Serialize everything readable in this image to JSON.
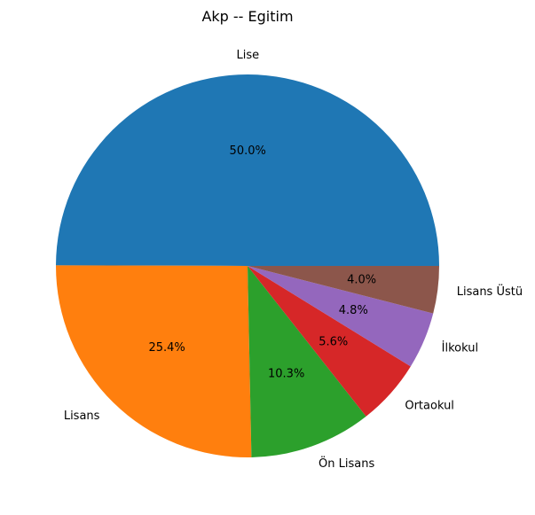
{
  "chart_data": {
    "type": "pie",
    "title": "Akp -- Egitim",
    "start_angle_deg": 0,
    "direction": "counterclockwise",
    "legend": "none",
    "slices": [
      {
        "label": "Lise",
        "value": 50.0,
        "pct_label": "50.0%",
        "color": "#1f77b4"
      },
      {
        "label": "Lisans",
        "value": 25.4,
        "pct_label": "25.4%",
        "color": "#ff7f0e"
      },
      {
        "label": "Ön Lisans",
        "value": 10.3,
        "pct_label": "10.3%",
        "color": "#2ca02c"
      },
      {
        "label": "Ortaokul",
        "value": 5.6,
        "pct_label": "5.6%",
        "color": "#d62728"
      },
      {
        "label": "İlkokul",
        "value": 4.8,
        "pct_label": "4.8%",
        "color": "#9467bd"
      },
      {
        "label": "Lisans Üstü",
        "value": 4.0,
        "pct_label": "4.0%",
        "color": "#8c564b"
      }
    ]
  }
}
